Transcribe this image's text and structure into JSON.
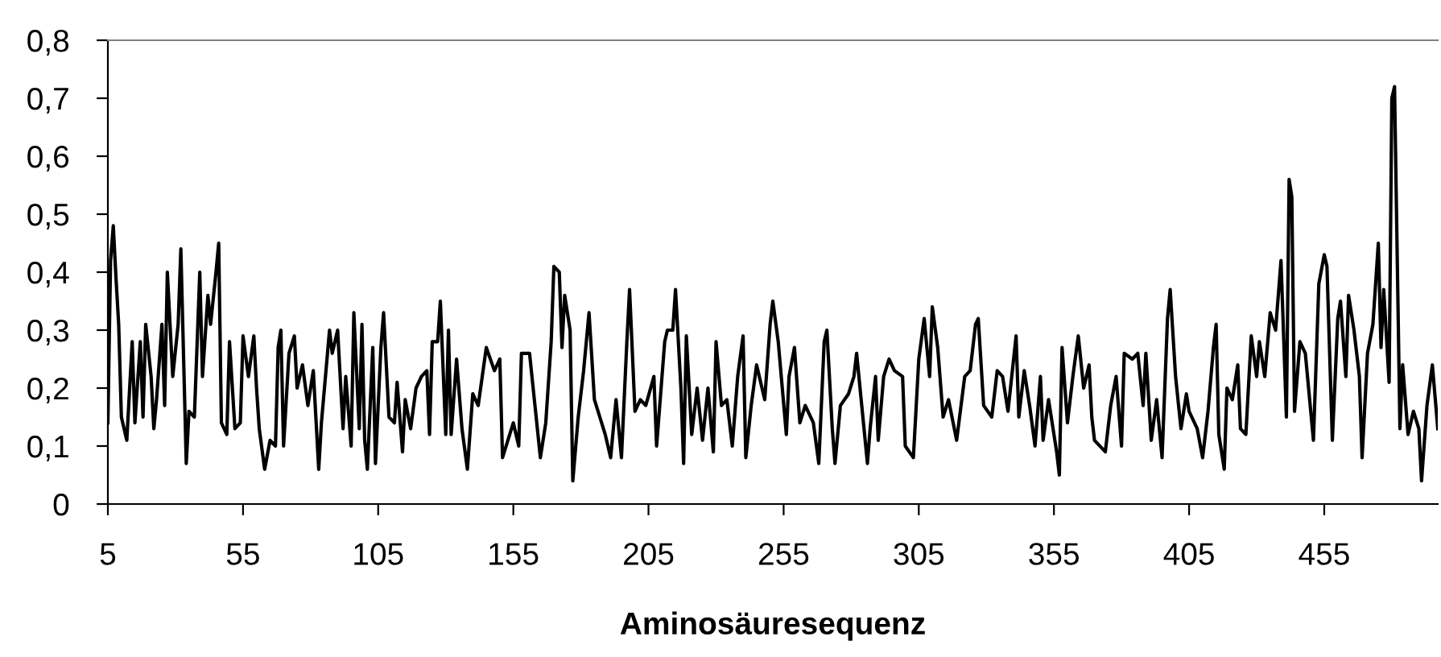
{
  "chart_data": {
    "type": "line",
    "xlabel": "Aminosäuresequenz",
    "xlim": [
      5,
      497
    ],
    "xticks": [
      5,
      55,
      105,
      155,
      205,
      255,
      305,
      355,
      405,
      455
    ],
    "ylim": [
      0,
      0.8
    ],
    "yticks": [
      {
        "value": 0,
        "label": "0"
      },
      {
        "value": 0.1,
        "label": "0,1"
      },
      {
        "value": 0.2,
        "label": "0,2"
      },
      {
        "value": 0.3,
        "label": "0,3"
      },
      {
        "value": 0.4,
        "label": "0,4"
      },
      {
        "value": 0.5,
        "label": "0,5"
      },
      {
        "value": 0.6,
        "label": "0,6"
      },
      {
        "value": 0.7,
        "label": "0,7"
      },
      {
        "value": 0.8,
        "label": "0,8"
      }
    ],
    "marker": "none",
    "line_style": "solid",
    "series": [
      {
        "color": "#000000",
        "x": [
          5,
          6,
          7,
          8,
          9,
          10,
          12,
          14,
          15,
          17,
          18,
          19,
          21,
          22,
          23,
          25,
          26,
          27,
          29,
          31,
          32,
          34,
          35,
          37,
          39,
          40,
          42,
          43,
          45,
          46,
          47,
          49,
          50,
          52,
          54,
          55,
          57,
          59,
          60,
          61,
          63,
          65,
          67,
          68,
          69,
          70,
          72,
          74,
          75,
          77,
          79,
          81,
          83,
          84,
          87,
          88,
          90,
          92,
          93,
          95,
          96,
          98,
          99,
          100,
          101,
          103,
          104,
          106,
          107,
          109,
          111,
          112,
          114,
          115,
          117,
          119,
          121,
          123,
          124,
          125,
          127,
          128,
          130,
          131,
          132,
          134,
          136,
          138,
          140,
          142,
          145,
          148,
          150,
          151,
          155,
          157,
          158,
          161,
          163,
          165,
          167,
          169,
          170,
          172,
          173,
          174,
          176,
          177,
          179,
          181,
          183,
          185,
          187,
          189,
          191,
          193,
          195,
          197,
          198,
          200,
          202,
          204,
          207,
          208,
          211,
          212,
          214,
          215,
          217,
          218,
          219,
          221,
          223,
          225,
          227,
          229,
          230,
          232,
          234,
          236,
          238,
          240,
          241,
          243,
          245,
          248,
          250,
          251,
          253,
          256,
          257,
          259,
          261,
          263,
          266,
          268,
          270,
          271,
          273,
          274,
          276,
          279,
          281,
          282,
          286,
          287,
          289,
          290,
          292,
          294,
          296,
          299,
          300,
          303,
          305,
          307,
          309,
          310,
          312,
          314,
          316,
          319,
          322,
          324,
          326,
          327,
          329,
          332,
          334,
          336,
          338,
          341,
          342,
          344,
          346,
          348,
          350,
          351,
          353,
          356,
          357,
          358,
          360,
          362,
          364,
          366,
          368,
          369,
          370,
          374,
          376,
          378,
          380,
          381,
          384,
          386,
          388,
          389,
          391,
          393,
          395,
          397,
          398,
          400,
          402,
          404,
          405,
          408,
          410,
          412,
          414,
          415,
          416,
          418,
          419,
          421,
          423,
          424,
          426,
          428,
          430,
          431,
          433,
          435,
          437,
          439,
          441,
          442,
          443,
          444,
          446,
          448,
          451,
          453,
          455,
          456,
          458,
          460,
          461,
          463,
          464,
          466,
          468,
          469,
          471,
          473,
          475,
          476,
          477,
          479,
          480,
          481,
          483,
          484,
          486,
          488,
          490,
          491,
          493,
          495,
          497
        ],
        "values": [
          0.14,
          0.42,
          0.48,
          0.39,
          0.31,
          0.15,
          0.11,
          0.28,
          0.14,
          0.28,
          0.15,
          0.31,
          0.22,
          0.13,
          0.18,
          0.31,
          0.17,
          0.4,
          0.22,
          0.31,
          0.44,
          0.07,
          0.16,
          0.15,
          0.4,
          0.22,
          0.36,
          0.31,
          0.4,
          0.45,
          0.14,
          0.12,
          0.28,
          0.13,
          0.14,
          0.29,
          0.22,
          0.29,
          0.2,
          0.13,
          0.06,
          0.11,
          0.1,
          0.27,
          0.3,
          0.1,
          0.26,
          0.29,
          0.2,
          0.24,
          0.17,
          0.23,
          0.06,
          0.14,
          0.3,
          0.26,
          0.3,
          0.13,
          0.22,
          0.1,
          0.33,
          0.13,
          0.31,
          0.11,
          0.06,
          0.27,
          0.07,
          0.27,
          0.33,
          0.15,
          0.14,
          0.21,
          0.09,
          0.18,
          0.13,
          0.2,
          0.22,
          0.23,
          0.12,
          0.28,
          0.28,
          0.35,
          0.12,
          0.3,
          0.12,
          0.25,
          0.13,
          0.06,
          0.19,
          0.17,
          0.27,
          0.23,
          0.25,
          0.08,
          0.14,
          0.1,
          0.26,
          0.26,
          0.17,
          0.08,
          0.14,
          0.28,
          0.41,
          0.4,
          0.27,
          0.36,
          0.3,
          0.04,
          0.15,
          0.23,
          0.33,
          0.18,
          0.15,
          0.12,
          0.08,
          0.18,
          0.08,
          0.28,
          0.37,
          0.16,
          0.18,
          0.17,
          0.22,
          0.1,
          0.28,
          0.3,
          0.3,
          0.37,
          0.2,
          0.07,
          0.29,
          0.12,
          0.2,
          0.11,
          0.2,
          0.09,
          0.28,
          0.17,
          0.18,
          0.1,
          0.22,
          0.29,
          0.08,
          0.17,
          0.24,
          0.18,
          0.31,
          0.35,
          0.28,
          0.12,
          0.22,
          0.27,
          0.14,
          0.17,
          0.14,
          0.07,
          0.28,
          0.3,
          0.13,
          0.07,
          0.17,
          0.19,
          0.22,
          0.26,
          0.07,
          0.13,
          0.22,
          0.11,
          0.22,
          0.25,
          0.23,
          0.22,
          0.1,
          0.08,
          0.25,
          0.32,
          0.22,
          0.34,
          0.27,
          0.15,
          0.18,
          0.11,
          0.22,
          0.23,
          0.31,
          0.32,
          0.17,
          0.15,
          0.23,
          0.22,
          0.16,
          0.29,
          0.15,
          0.23,
          0.17,
          0.1,
          0.22,
          0.11,
          0.18,
          0.09,
          0.05,
          0.27,
          0.14,
          0.22,
          0.29,
          0.2,
          0.24,
          0.15,
          0.11,
          0.09,
          0.17,
          0.22,
          0.1,
          0.26,
          0.25,
          0.26,
          0.17,
          0.26,
          0.11,
          0.18,
          0.08,
          0.32,
          0.37,
          0.22,
          0.13,
          0.19,
          0.16,
          0.13,
          0.08,
          0.16,
          0.27,
          0.31,
          0.12,
          0.06,
          0.2,
          0.18,
          0.24,
          0.13,
          0.12,
          0.29,
          0.22,
          0.28,
          0.22,
          0.33,
          0.3,
          0.42,
          0.15,
          0.56,
          0.53,
          0.16,
          0.28,
          0.26,
          0.11,
          0.38,
          0.43,
          0.41,
          0.11,
          0.32,
          0.35,
          0.22,
          0.36,
          0.3,
          0.22,
          0.08,
          0.26,
          0.31,
          0.45,
          0.27,
          0.37,
          0.21,
          0.7,
          0.72,
          0.13,
          0.24,
          0.12,
          0.16,
          0.13,
          0.04,
          0.17,
          0.24,
          0.13
        ]
      }
    ]
  }
}
